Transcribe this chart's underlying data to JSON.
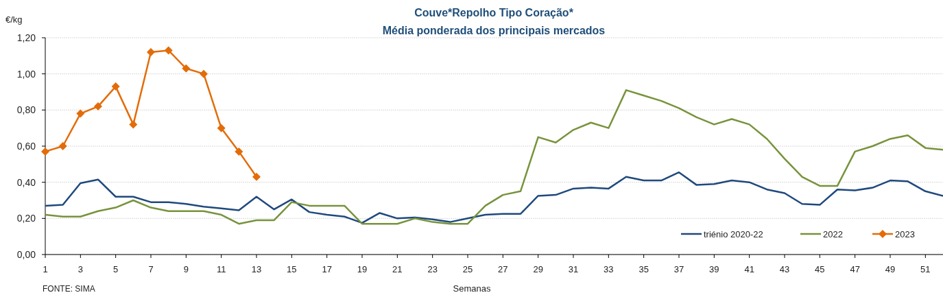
{
  "chart_data": {
    "type": "line",
    "title": "Couve*Repolho Tipo Coração*",
    "subtitle": "Média ponderada dos principais mercados",
    "xlabel": "Semanas",
    "ylabel": "€/kg",
    "annotations": [
      "FONTE: SIMA"
    ],
    "x": [
      1,
      2,
      3,
      4,
      5,
      6,
      7,
      8,
      9,
      10,
      11,
      12,
      13,
      14,
      15,
      16,
      17,
      18,
      19,
      20,
      21,
      22,
      23,
      24,
      25,
      26,
      27,
      28,
      29,
      30,
      31,
      32,
      33,
      34,
      35,
      36,
      37,
      38,
      39,
      40,
      41,
      42,
      43,
      44,
      45,
      46,
      47,
      48,
      49,
      50,
      51,
      52
    ],
    "xlim": [
      1,
      52
    ],
    "xticks": [
      1,
      3,
      5,
      7,
      9,
      11,
      13,
      15,
      17,
      19,
      21,
      23,
      25,
      27,
      29,
      31,
      33,
      35,
      37,
      39,
      41,
      43,
      45,
      47,
      49,
      51
    ],
    "ylim": [
      0,
      1.2
    ],
    "yticks": [
      {
        "value": 0,
        "label": "0,00"
      },
      {
        "value": 0.2,
        "label": "0,20"
      },
      {
        "value": 0.4,
        "label": "0,40"
      },
      {
        "value": 0.6,
        "label": "0,60"
      },
      {
        "value": 0.8,
        "label": "0,80"
      },
      {
        "value": 1,
        "label": "1,00"
      },
      {
        "value": 1.2,
        "label": "1,20"
      }
    ],
    "grid": "y",
    "legend": "bottom right",
    "series": [
      {
        "name": "triénio 2020-22",
        "color": "#1f497d",
        "marker": "none",
        "values": [
          0.27,
          0.275,
          0.395,
          0.415,
          0.32,
          0.32,
          0.29,
          0.29,
          0.28,
          0.265,
          0.255,
          0.245,
          0.32,
          0.25,
          0.305,
          0.235,
          0.22,
          0.21,
          0.175,
          0.23,
          0.2,
          0.205,
          0.195,
          0.18,
          0.2,
          0.22,
          0.225,
          0.225,
          0.325,
          0.33,
          0.365,
          0.37,
          0.365,
          0.43,
          0.41,
          0.41,
          0.455,
          0.385,
          0.39,
          0.41,
          0.4,
          0.36,
          0.34,
          0.28,
          0.275,
          0.36,
          0.355,
          0.37,
          0.41,
          0.405,
          0.35,
          0.325
        ]
      },
      {
        "name": "2022",
        "color": "#77933c",
        "marker": "none",
        "values": [
          0.22,
          0.21,
          0.21,
          0.24,
          0.26,
          0.3,
          0.26,
          0.24,
          0.24,
          0.24,
          0.22,
          0.17,
          0.19,
          0.19,
          0.29,
          0.27,
          0.27,
          0.27,
          0.17,
          0.17,
          0.17,
          0.2,
          0.18,
          0.17,
          0.17,
          0.27,
          0.33,
          0.35,
          0.65,
          0.62,
          0.69,
          0.73,
          0.7,
          0.91,
          0.88,
          0.85,
          0.81,
          0.76,
          0.72,
          0.75,
          0.72,
          0.64,
          0.53,
          0.43,
          0.38,
          0.38,
          0.57,
          0.6,
          0.64,
          0.66,
          0.59,
          0.58
        ]
      },
      {
        "name": "2023",
        "color": "#e36c09",
        "marker": "diamond",
        "values": [
          0.57,
          0.6,
          0.78,
          0.82,
          0.93,
          0.72,
          1.12,
          1.13,
          1.03,
          1.0,
          0.7,
          0.57,
          0.43,
          null,
          null,
          null,
          null,
          null,
          null,
          null,
          null,
          null,
          null,
          null,
          null,
          null,
          null,
          null,
          null,
          null,
          null,
          null,
          null,
          null,
          null,
          null,
          null,
          null,
          null,
          null,
          null,
          null,
          null,
          null,
          null,
          null,
          null,
          null,
          null,
          null,
          null,
          null
        ]
      }
    ]
  }
}
